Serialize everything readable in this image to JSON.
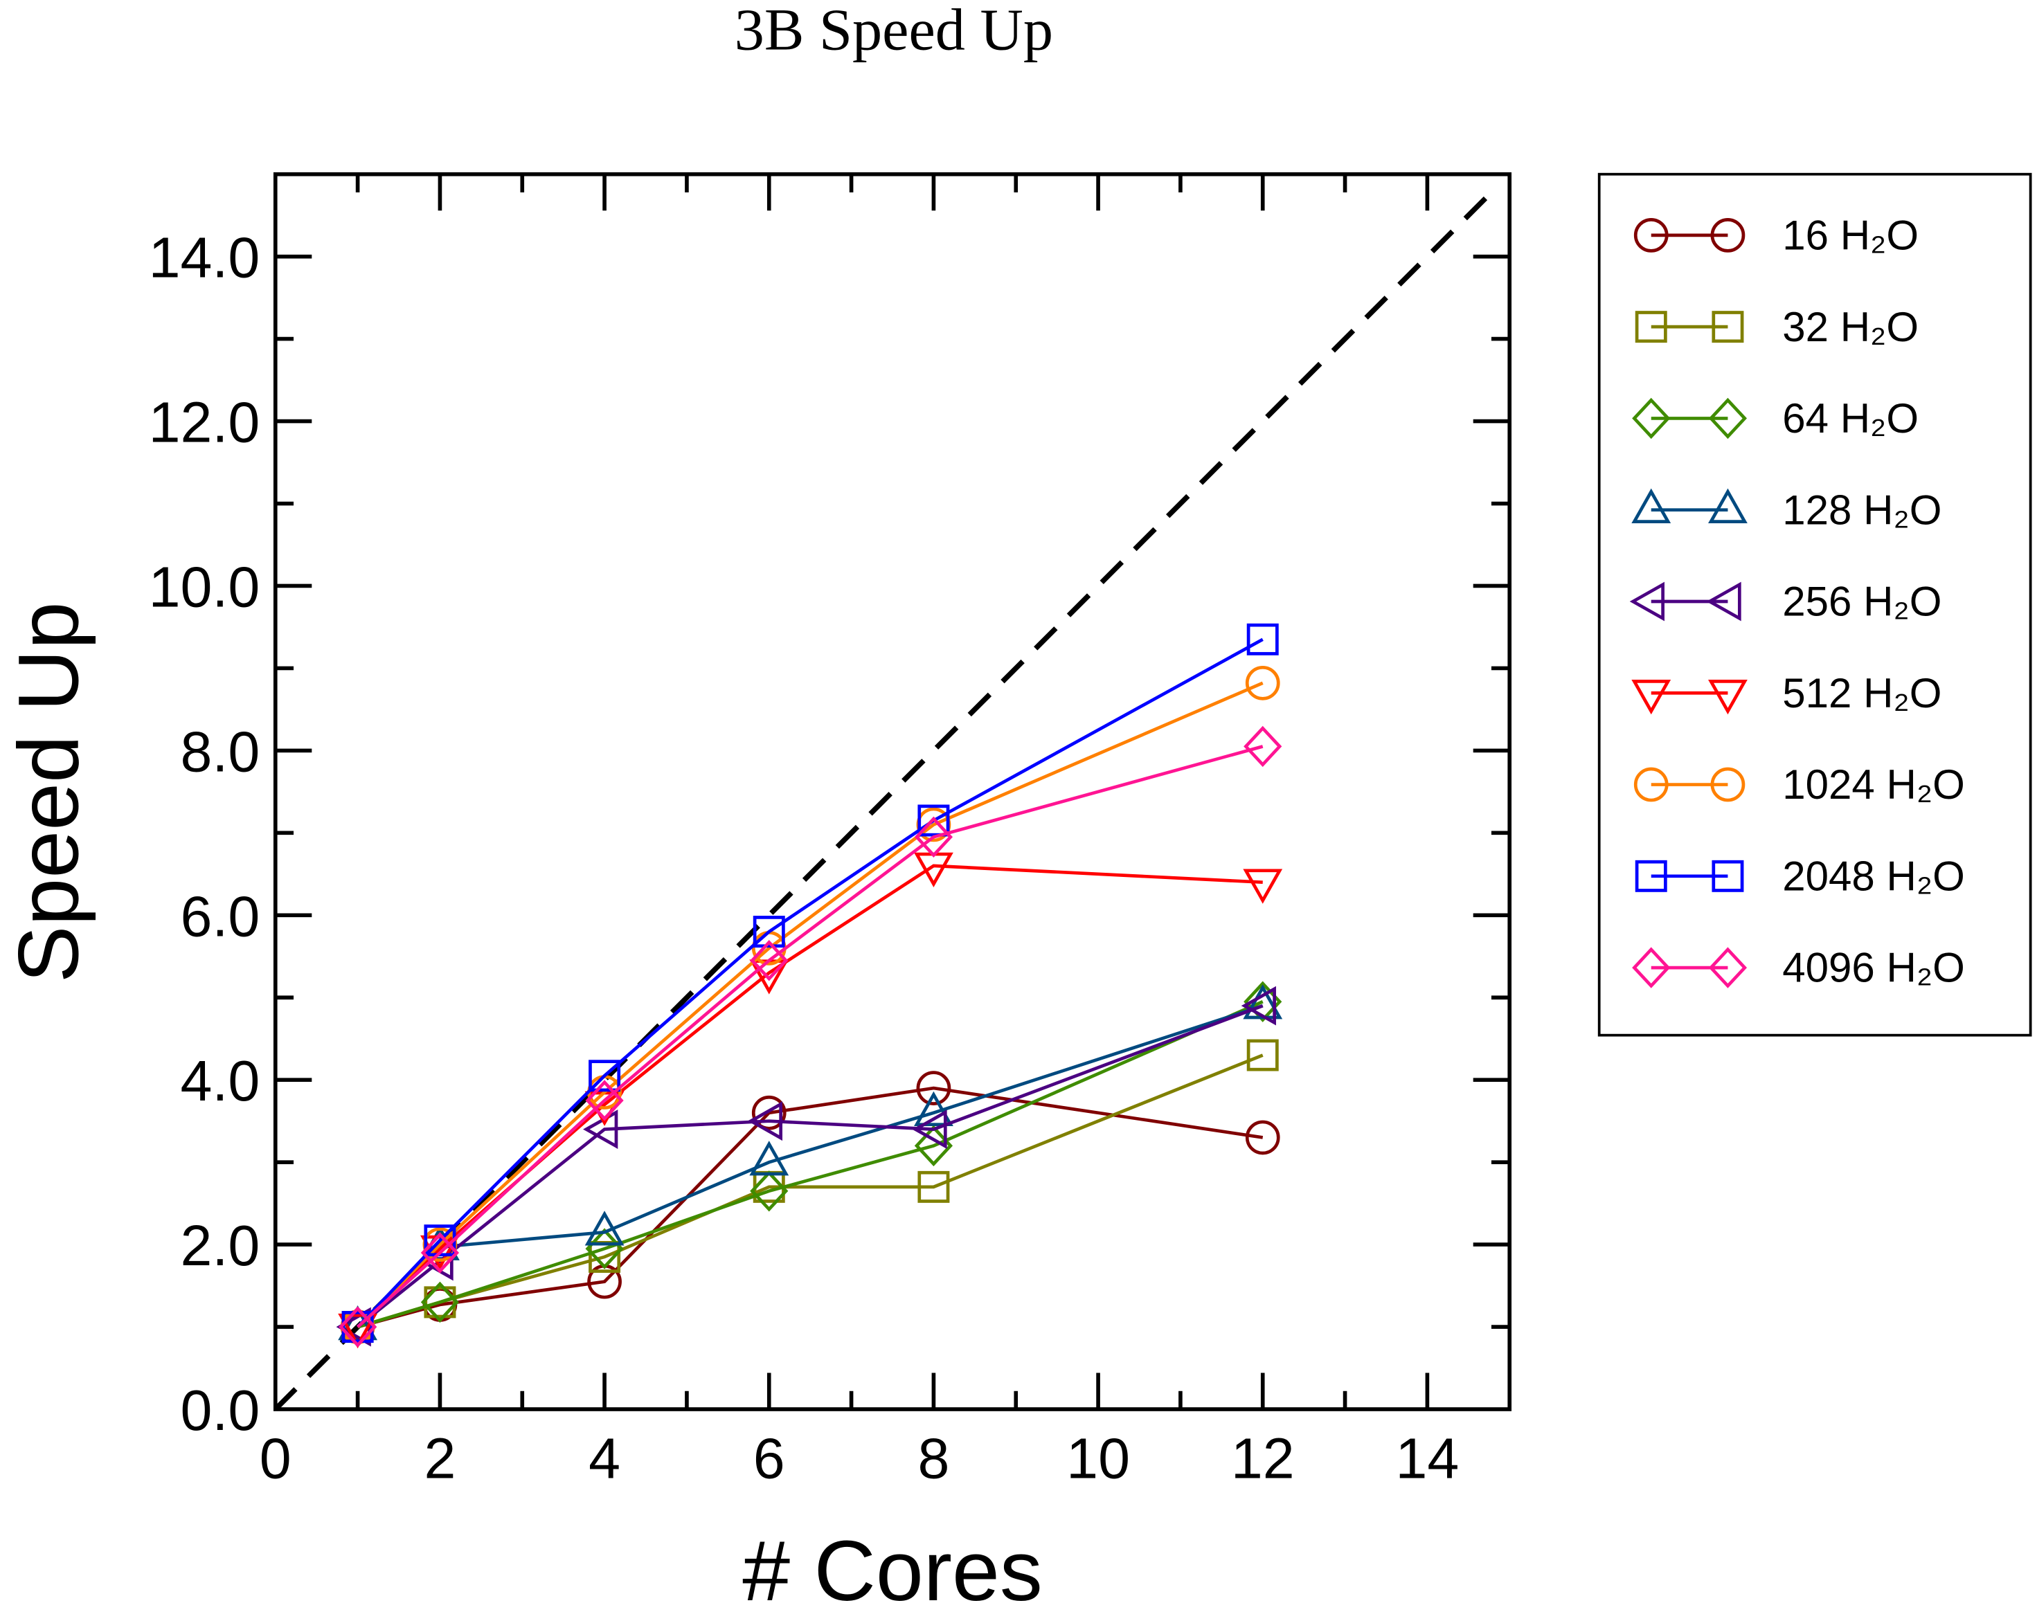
{
  "chart_data": {
    "type": "line",
    "title": "3B Speed Up",
    "xlabel": "# Cores",
    "ylabel": "Speed Up",
    "xlim": [
      0,
      15
    ],
    "ylim": [
      0,
      15
    ],
    "x_ticks": [
      "0",
      "2",
      "4",
      "6",
      "8",
      "10",
      "12",
      "14"
    ],
    "y_ticks": [
      "0.0",
      "2.0",
      "4.0",
      "6.0",
      "8.0",
      "10.0",
      "12.0",
      "14.0"
    ],
    "legend_position": "outside-right",
    "grid": false,
    "reference_line": {
      "style": "dashed",
      "color": "#000000",
      "description": "ideal y = x"
    },
    "x": [
      1,
      2,
      4,
      6,
      8,
      12
    ],
    "series": [
      {
        "name": "16 H₂O",
        "marker": "circle",
        "color": "#800000",
        "values": [
          1.0,
          1.27,
          1.55,
          3.6,
          3.9,
          3.3
        ]
      },
      {
        "name": "32 H₂O",
        "marker": "square",
        "color": "#808000",
        "values": [
          1.0,
          1.3,
          1.85,
          2.7,
          2.7,
          4.3
        ]
      },
      {
        "name": "64 H₂O",
        "marker": "diamond",
        "color": "#3f8c00",
        "values": [
          1.0,
          1.3,
          1.95,
          2.65,
          3.2,
          4.95
        ]
      },
      {
        "name": "128 H₂O",
        "marker": "triangle-up",
        "color": "#004a80",
        "values": [
          1.0,
          1.97,
          2.15,
          3.0,
          3.6,
          4.9
        ]
      },
      {
        "name": "256 H₂O",
        "marker": "triangle-left",
        "color": "#4b0082",
        "values": [
          1.0,
          1.8,
          3.4,
          3.5,
          3.4,
          4.9
        ]
      },
      {
        "name": "512 H₂O",
        "marker": "triangle-down",
        "color": "#ff0000",
        "values": [
          1.0,
          1.95,
          3.7,
          5.3,
          6.6,
          6.4
        ]
      },
      {
        "name": "1024 H₂O",
        "marker": "circle",
        "color": "#ff8000",
        "values": [
          1.0,
          2.0,
          3.85,
          5.6,
          7.1,
          8.82
        ]
      },
      {
        "name": "2048 H₂O",
        "marker": "square",
        "color": "#0000ff",
        "values": [
          1.0,
          2.05,
          4.05,
          5.8,
          7.15,
          9.35
        ]
      },
      {
        "name": "4096 H₂O",
        "marker": "diamond",
        "color": "#ff1493",
        "values": [
          1.0,
          1.9,
          3.75,
          5.45,
          6.95,
          8.05
        ]
      }
    ]
  }
}
